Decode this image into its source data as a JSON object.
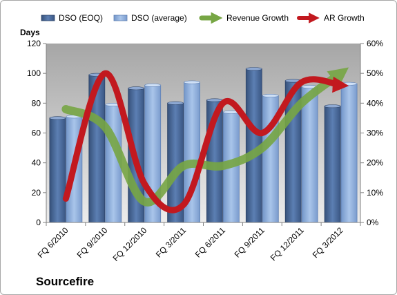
{
  "chart_data": {
    "type": "bar",
    "company": "Sourcefire",
    "left_axis_label": "Days",
    "categories": [
      "FQ 6/2010",
      "FQ 9/2010",
      "FQ 12/2010",
      "FQ 3/2011",
      "FQ 6/2011",
      "FQ 9/2011",
      "FQ 12/2011",
      "FQ 3/2012"
    ],
    "y_left": {
      "min": 0,
      "max": 120,
      "ticks": [
        "0",
        "20",
        "40",
        "60",
        "80",
        "100",
        "120"
      ]
    },
    "y_right": {
      "min": 0,
      "max": 0.6,
      "ticks": [
        "0%",
        "10%",
        "20%",
        "30%",
        "40%",
        "50%",
        "60%"
      ]
    },
    "bar_series": [
      {
        "name": "DSO (EOQ)",
        "values": [
          70,
          99,
          90,
          80,
          82,
          103,
          95,
          78
        ],
        "color": "#4f6f9f"
      },
      {
        "name": "DSO (average)",
        "values": [
          71,
          79,
          92,
          94,
          74,
          85,
          91,
          93
        ],
        "color": "#8fb0e0"
      }
    ],
    "line_series": [
      {
        "name": "Revenue Growth",
        "values": [
          0.38,
          0.32,
          0.07,
          0.19,
          0.19,
          0.25,
          0.4,
          0.5
        ],
        "color": "#77a644"
      },
      {
        "name": "AR Growth",
        "values": [
          0.08,
          0.5,
          0.13,
          0.06,
          0.4,
          0.3,
          0.47,
          0.46
        ],
        "color": "#c2191f"
      }
    ],
    "grid": false,
    "legend_position": "top"
  }
}
